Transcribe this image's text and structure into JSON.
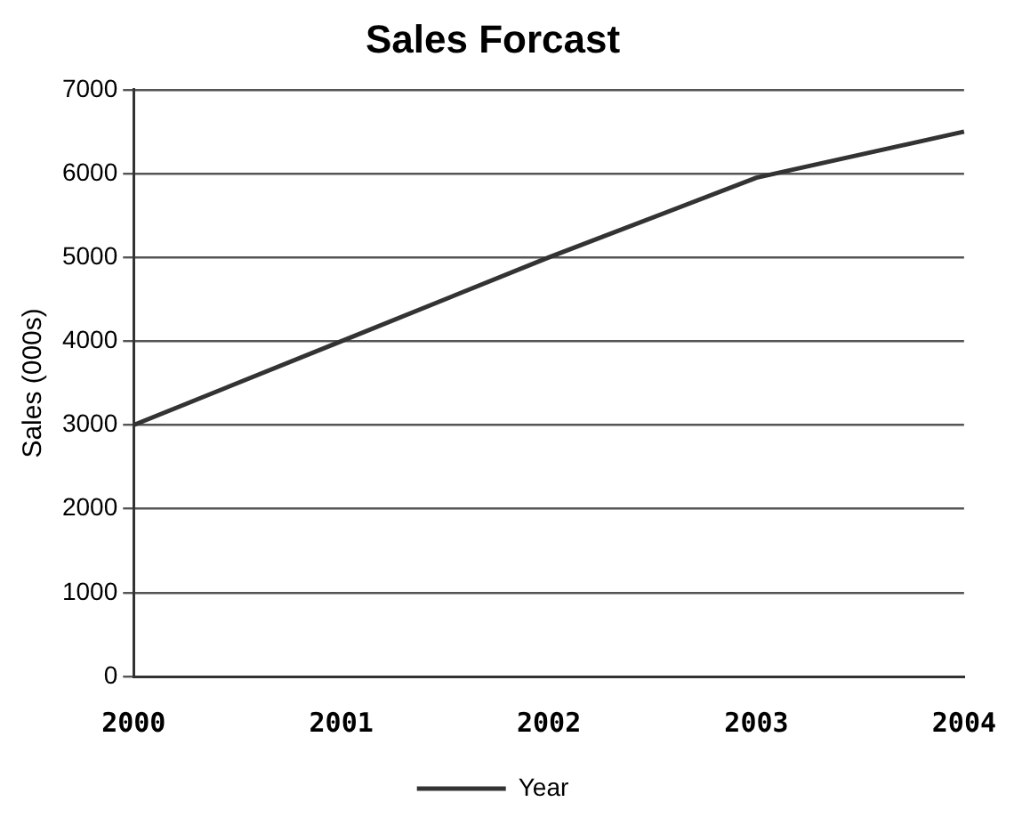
{
  "chart_data": {
    "type": "line",
    "title": "Sales Forcast",
    "xlabel": null,
    "ylabel": "Sales (000s)",
    "categories": [
      "2000",
      "2001",
      "2002",
      "2003",
      "2004"
    ],
    "series": [
      {
        "name": "Year",
        "color": "#333333",
        "values": [
          3000,
          4000,
          5000,
          5950,
          6500
        ]
      }
    ],
    "ylim": [
      0,
      7000
    ],
    "yticks": [
      0,
      1000,
      2000,
      3000,
      4000,
      5000,
      6000,
      7000
    ],
    "grid": "y",
    "legend": "bottom",
    "marker": "none",
    "line_style": "solid"
  }
}
